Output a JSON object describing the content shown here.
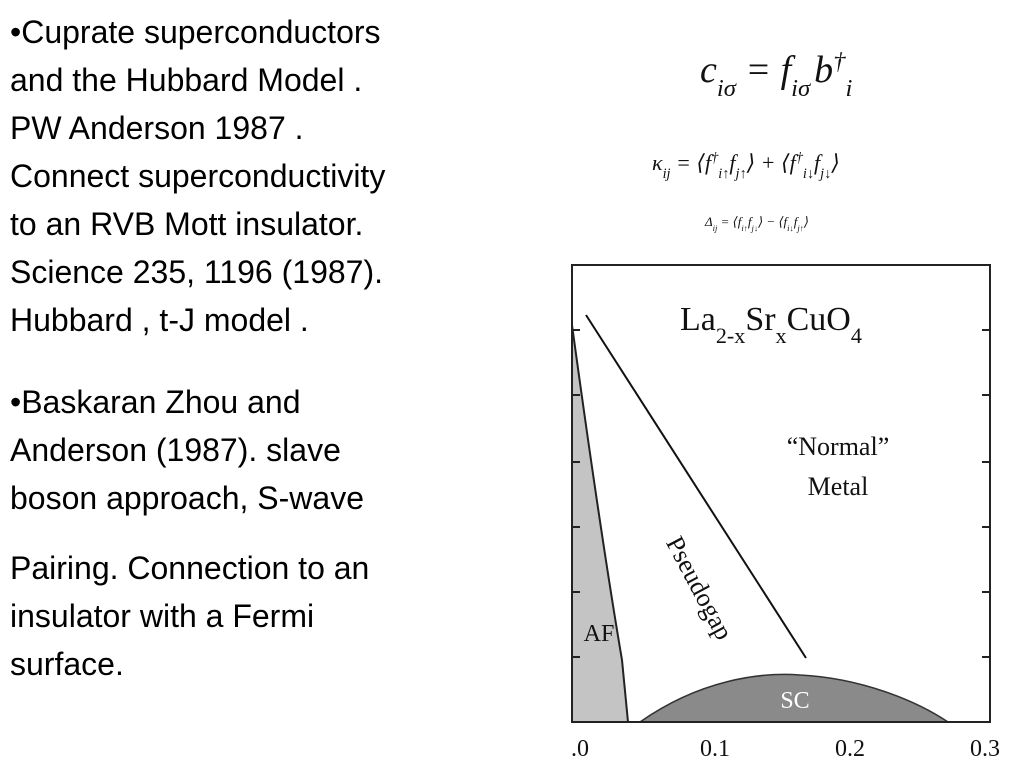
{
  "text_column": {
    "paragraphs": [
      {
        "lines": [
          "•Cuprate superconductors",
          "and the Hubbard Model .",
          "PW Anderson 1987 .",
          "Connect superconductivity",
          "to an RVB Mott insulator.",
          "Science 235, 1196 (1987).",
          "Hubbard , t-J model ."
        ]
      },
      {
        "lines": [
          "•Baskaran Zhou and",
          "Anderson (1987). slave",
          "boson approach, S-wave"
        ]
      },
      {
        "lines": [
          "Pairing. Connection to an",
          "insulator with a Fermi",
          "surface."
        ]
      }
    ]
  },
  "equations": [
    [
      "c",
      "iσ",
      " = f",
      "iσ",
      "b",
      "†",
      "i"
    ],
    [
      "κ",
      "ij",
      " = ⟨f",
      "†",
      "i↑",
      "f",
      "j↑",
      "⟩ + ⟨f",
      "†",
      "i↓",
      "f",
      "j↓",
      "⟩"
    ],
    [
      "Δ",
      "ij",
      " = ⟨f",
      "i↑",
      "f",
      "j↓",
      "⟩ − ⟨f",
      "i↓",
      "f",
      "j↑",
      "⟩"
    ]
  ],
  "figure": {
    "compound": [
      "La",
      "2-x",
      "Sr",
      "x",
      "CuO",
      "4"
    ],
    "normal_metal": [
      "“Normal”",
      "Metal"
    ],
    "pseudogap": "Pseudogap",
    "af": "AF",
    "sc": "SC",
    "x_tick_labels": [
      ".0",
      "0.1",
      "0.2",
      "0.3"
    ]
  }
}
